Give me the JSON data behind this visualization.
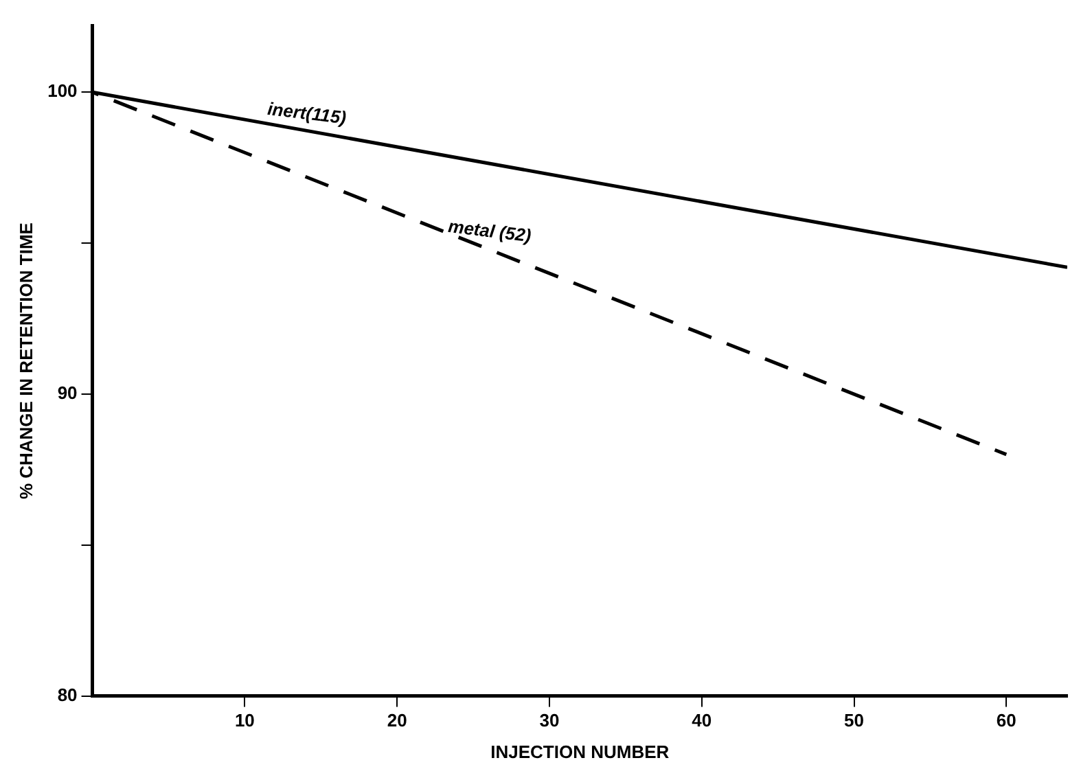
{
  "chart_data": {
    "type": "line",
    "xlabel": "INJECTION NUMBER",
    "ylabel": "% CHANGE IN RETENTION TIME",
    "xlim": [
      0,
      64
    ],
    "xticks": [
      10,
      20,
      30,
      40,
      50,
      60
    ],
    "ylim": [
      80,
      102.2
    ],
    "yticks": [
      80,
      {
        "value": 85,
        "label": null
      },
      90,
      {
        "value": 95,
        "label": null
      },
      100
    ],
    "series": [
      {
        "color": "#000000",
        "x": [
          0,
          64
        ],
        "values": [
          100,
          94.2
        ],
        "line_style": "solid"
      },
      {
        "color": "#000000",
        "x": [
          0,
          60
        ],
        "values": [
          100,
          88.0
        ],
        "line_style": "dashed"
      }
    ],
    "annotations": [
      {
        "text": "inert(115)",
        "x": 14,
        "y": 98.7
      },
      {
        "text": "metal (52)",
        "x": 26,
        "y": 94.8
      }
    ],
    "grid": false,
    "legend": false,
    "marker": "none"
  }
}
